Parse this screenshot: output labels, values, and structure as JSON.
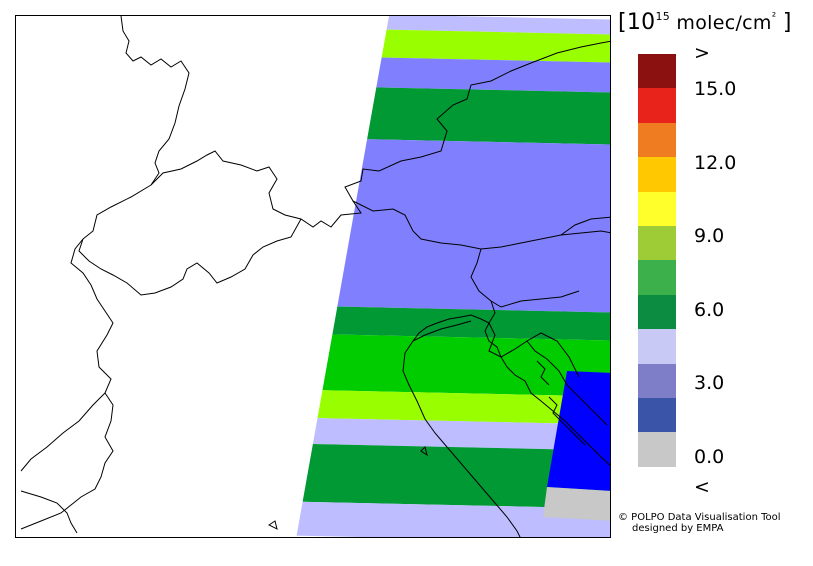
{
  "legend": {
    "unit_prefix": "[10",
    "unit_exponent": "15",
    "unit_suffix": " molec/cm",
    "unit_sq": "²",
    "unit_close": "]",
    "top_symbol": ">",
    "bottom_symbol": "<",
    "ticks": [
      "15.0",
      "12.0",
      "9.0",
      "6.0",
      "3.0",
      "0.0"
    ],
    "colors": [
      "#8b1010",
      "#e8231c",
      "#f07c22",
      "#ffc800",
      "#ffff2c",
      "#9dcc36",
      "#3cb04a",
      "#0c8c40",
      "#c9c9f5",
      "#7d7dc8",
      "#3a55a8",
      "#c8c8c8"
    ]
  },
  "credit": {
    "line1": "© POLPO Data Visualisation Tool",
    "line2": "designed by EMPA"
  },
  "map": {
    "band_colors": {
      "light_lavender": "#bdbdff",
      "lime": "#99ff00",
      "periwinkle": "#8080ff",
      "dark_green": "#009933",
      "green": "#00cc00",
      "blue": "#0000ff",
      "grey": "#c8c8c8"
    }
  }
}
